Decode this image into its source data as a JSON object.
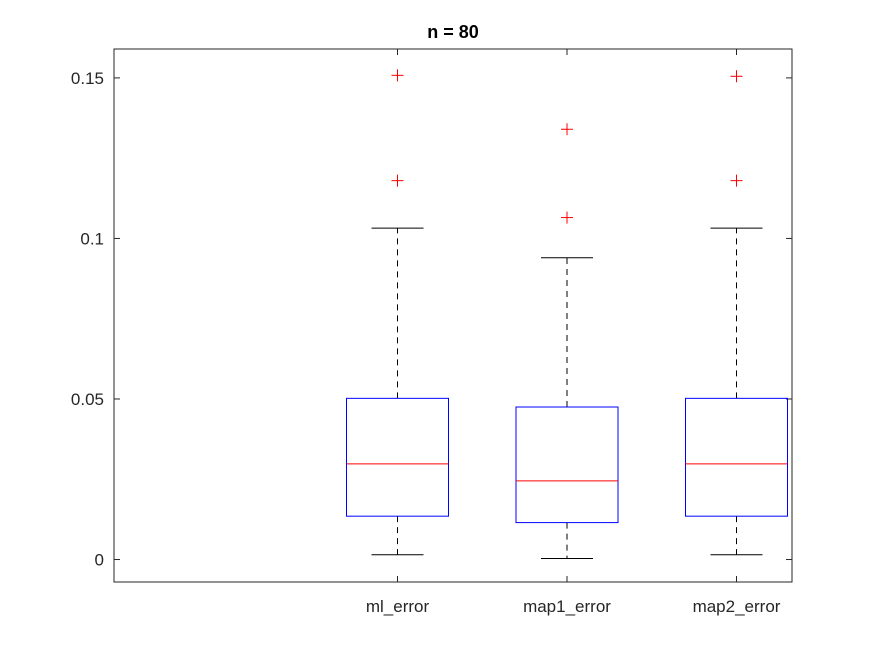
{
  "chart_data": {
    "type": "boxplot",
    "title": "n = 80",
    "xlabel": "",
    "ylabel": "",
    "ylim": [
      -0.007,
      0.159
    ],
    "yticks": [
      0,
      0.05,
      0.1,
      0.15
    ],
    "ytick_labels": [
      "0",
      "0.05",
      "0.1",
      "0.15"
    ],
    "categories": [
      "ml_error",
      "map1_error",
      "map2_error"
    ],
    "boxes": [
      {
        "category": "ml_error",
        "whisker_low": 0.0015,
        "q1": 0.0135,
        "median": 0.0298,
        "q3": 0.0502,
        "whisker_high": 0.1032,
        "outliers": [
          0.118,
          0.1508
        ]
      },
      {
        "category": "map1_error",
        "whisker_low": 0.0003,
        "q1": 0.0115,
        "median": 0.0245,
        "q3": 0.0475,
        "whisker_high": 0.094,
        "outliers": [
          0.1065,
          0.134
        ]
      },
      {
        "category": "map2_error",
        "whisker_low": 0.0015,
        "q1": 0.0135,
        "median": 0.0298,
        "q3": 0.0502,
        "whisker_high": 0.1032,
        "outliers": [
          0.118,
          0.1505
        ]
      }
    ],
    "colors": {
      "box": "#0000ff",
      "median": "#ff0000",
      "whisker": "#000000",
      "outlier": "#ff0000",
      "axis": "#262626"
    },
    "grid": false
  }
}
